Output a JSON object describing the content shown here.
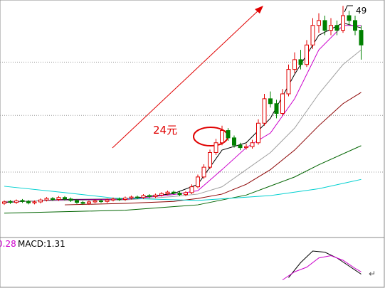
{
  "chart_data": {
    "type": "candlestick",
    "annotation": "24元",
    "peak_label": "49",
    "open": [
      8.6,
      9.0,
      8.8,
      9.2,
      9.0,
      8.7,
      8.9,
      9.3,
      9.6,
      9.4,
      9.8,
      9.5,
      9.2,
      8.8,
      8.6,
      8.9,
      9.1,
      9.0,
      9.3,
      9.5,
      9.4,
      9.7,
      9.9,
      9.8,
      10.2,
      10.0,
      10.3,
      10.6,
      10.9,
      10.7,
      10.4,
      10.8,
      12,
      14,
      16,
      19,
      21,
      23.5,
      22,
      20.5,
      20,
      20.2,
      21,
      25,
      30,
      29,
      27,
      31,
      36,
      38,
      37,
      41,
      45,
      46,
      44,
      45,
      44,
      47,
      46,
      44
    ],
    "high": [
      9.2,
      9.3,
      9.4,
      9.5,
      9.3,
      9.2,
      9.6,
      9.9,
      9.9,
      10.1,
      10.1,
      9.8,
      9.5,
      9.1,
      9.2,
      9.4,
      9.4,
      9.6,
      9.8,
      9.8,
      10.0,
      10.2,
      10.2,
      10.5,
      10.5,
      10.6,
      10.9,
      11.2,
      11.2,
      11.0,
      11.1,
      12.5,
      14.5,
      16.6,
      19.6,
      21.8,
      24.5,
      24,
      22.5,
      21,
      20.8,
      21.6,
      25.8,
      31,
      31.5,
      29.8,
      32,
      37,
      39.5,
      40,
      42,
      46.5,
      47.5,
      47,
      46.5,
      46,
      49,
      48,
      47,
      45
    ],
    "low": [
      8.3,
      8.5,
      8.5,
      8.7,
      8.4,
      8.4,
      8.6,
      9.0,
      9.1,
      9.1,
      9.2,
      8.9,
      8.5,
      8.3,
      8.3,
      8.6,
      8.7,
      8.7,
      9.0,
      9.1,
      9.1,
      9.4,
      9.5,
      9.5,
      9.7,
      9.7,
      10.0,
      10.3,
      10.4,
      10.1,
      10.1,
      10.5,
      11.7,
      13.6,
      15.6,
      18.5,
      20.5,
      21.4,
      20,
      19.5,
      19.6,
      19.8,
      20.6,
      24.5,
      28.2,
      26,
      26.5,
      30.5,
      35.2,
      36,
      36.5,
      40.2,
      43.5,
      43,
      43,
      43,
      43.5,
      45,
      43,
      38
    ],
    "close": [
      8.9,
      8.8,
      9.1,
      9.0,
      8.7,
      8.9,
      9.3,
      9.6,
      9.4,
      9.8,
      9.5,
      9.2,
      8.8,
      8.6,
      8.9,
      9.1,
      9.0,
      9.3,
      9.5,
      9.4,
      9.7,
      9.9,
      9.8,
      10.2,
      10.0,
      10.3,
      10.6,
      10.9,
      10.7,
      10.4,
      10.8,
      12,
      14,
      16,
      19,
      21,
      23.5,
      22,
      20.5,
      20,
      20.2,
      21,
      25,
      30,
      29,
      27,
      31,
      36,
      38,
      37,
      41,
      45,
      46,
      44,
      45,
      44,
      47,
      46,
      44,
      41
    ],
    "up_color": "#e00000",
    "down_color": "#008000",
    "ylim": [
      2.2,
      50.2
    ],
    "grid_lines": [
      37.5,
      26.6,
      15.0
    ],
    "series": [
      {
        "color": "#000000",
        "x": [
          0,
          10,
          20,
          28,
          32,
          36,
          40,
          44,
          48,
          52,
          56,
          59
        ],
        "values": [
          8.8,
          9.4,
          9.5,
          10.6,
          12.5,
          19.5,
          21,
          26,
          35,
          43,
          45.5,
          44.5
        ]
      },
      {
        "color": "#cc00cc",
        "x": [
          0,
          10,
          20,
          28,
          32,
          36,
          40,
          44,
          48,
          52,
          56,
          59
        ],
        "values": [
          8.9,
          9.3,
          9.4,
          10.4,
          11.2,
          15.5,
          20,
          23,
          30,
          40,
          45,
          45
        ]
      },
      {
        "color": "#a0a0a0",
        "x": [
          0,
          10,
          20,
          28,
          32,
          36,
          40,
          44,
          48,
          52,
          56,
          59
        ],
        "values": [
          9,
          9.2,
          9.3,
          10,
          10.5,
          12,
          15.5,
          19,
          24,
          31,
          37,
          40
        ]
      },
      {
        "color": "#8b0000",
        "x": [
          10,
          20,
          28,
          32,
          36,
          40,
          44,
          48,
          52,
          56,
          59
        ],
        "values": [
          8.3,
          8.6,
          9.0,
          9.6,
          10.5,
          12.5,
          15.5,
          19.5,
          24.5,
          29,
          31.3
        ]
      },
      {
        "color": "#006400",
        "x": [
          0,
          20,
          32,
          40,
          48,
          52,
          59
        ],
        "values": [
          6.6,
          7.2,
          8.3,
          10.3,
          14,
          16.5,
          20.4
        ]
      },
      {
        "color": "#00d0d0",
        "x": [
          0,
          10,
          18,
          32,
          44,
          52,
          59
        ],
        "values": [
          12.1,
          10.8,
          9.7,
          9.2,
          10.2,
          11.6,
          13.5
        ]
      }
    ],
    "macd": {
      "label_a": "0.28",
      "label_b": "MACD:1.31",
      "ylim": [
        0,
        2
      ],
      "series": [
        {
          "color": "#000000",
          "x": [
            47,
            49,
            51,
            53,
            55,
            57,
            59
          ],
          "values": [
            0.45,
            1.1,
            1.6,
            1.55,
            1.3,
            0.95,
            0.6
          ]
        },
        {
          "color": "#cc00cc",
          "x": [
            46,
            48,
            50,
            52,
            54,
            56,
            58,
            59
          ],
          "values": [
            0.35,
            0.7,
            0.9,
            1.3,
            1.4,
            1.2,
            0.85,
            0.7
          ]
        }
      ]
    }
  }
}
